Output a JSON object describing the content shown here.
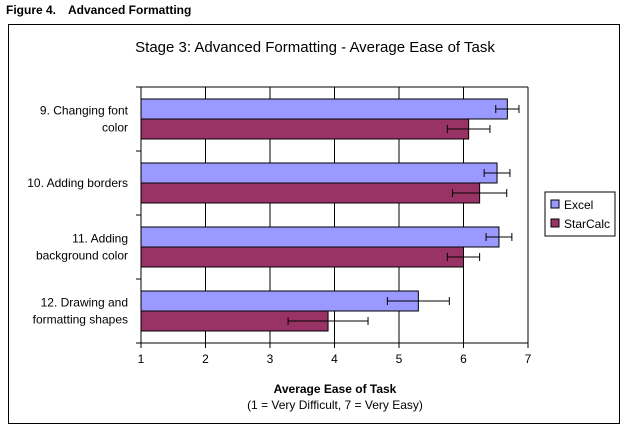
{
  "figure": {
    "number": "Figure 4.",
    "title": "Advanced Formatting"
  },
  "colors": {
    "excel": "#9999ff",
    "starcalc": "#993366",
    "grid": "#000000",
    "plot_bg": "#ffffff"
  },
  "chart_data": {
    "type": "bar",
    "orientation": "horizontal",
    "title": "Stage 3: Advanced Formatting - Average Ease of Task",
    "xlabel": "Average Ease of Task",
    "xlabel_sub": "(1 = Very Difficult, 7 = Very Easy)",
    "ylabel": "",
    "xlim": [
      1,
      7
    ],
    "xticks": [
      1,
      2,
      3,
      4,
      5,
      6,
      7
    ],
    "grid": true,
    "legend_position": "right",
    "categories": [
      [
        "9. Changing font",
        "color"
      ],
      [
        "10. Adding borders"
      ],
      [
        "11. Adding",
        "background color"
      ],
      [
        "12. Drawing and",
        "formatting shapes"
      ]
    ],
    "series": [
      {
        "name": "Excel",
        "values": [
          6.68,
          6.52,
          6.55,
          5.3
        ],
        "errors": [
          0.18,
          0.2,
          0.2,
          0.48
        ]
      },
      {
        "name": "StarCalc",
        "values": [
          6.08,
          6.25,
          6.0,
          3.9
        ],
        "errors": [
          0.33,
          0.42,
          0.25,
          0.62
        ]
      }
    ]
  }
}
